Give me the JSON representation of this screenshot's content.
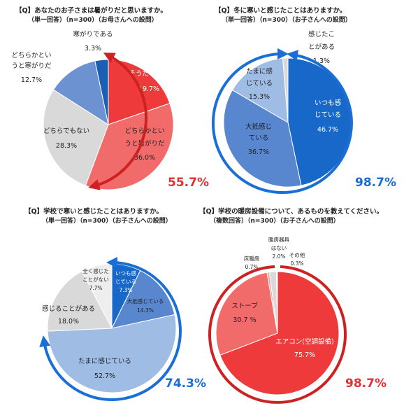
{
  "chart_data": [
    {
      "type": "pie",
      "title": "【Q】あなたのお子さまは暑がりだと思いますか。",
      "subtitle": "（単一回答）（n=300）（お母さんへの設問）",
      "slices": [
        {
          "label": "そうだと思う",
          "value": 19.7,
          "value_label": "19.7%",
          "color": "#ee3a3a"
        },
        {
          "label": "どちらかというと暑がりだ",
          "value": 36.0,
          "value_label": "36.0%",
          "color": "#f26b6b"
        },
        {
          "label": "どちらでもない",
          "value": 28.3,
          "value_label": "28.3%",
          "color": "#d9d9d9"
        },
        {
          "label": "どちらかというと寒がりだ",
          "value": 12.7,
          "value_label": "12.7%",
          "color": "#6d92d2"
        },
        {
          "label": "寒がりである",
          "value": 3.3,
          "value_label": "3.3%",
          "color": "#1a5fb4"
        }
      ],
      "total_label": "55.7%",
      "total_color": "#e03030"
    },
    {
      "type": "pie",
      "title": "【Q】冬に寒いと感じたことはありますか。",
      "subtitle": "（単一回答）（n=300）（お子さんへの設問）",
      "slices": [
        {
          "label": "いつも感じている",
          "value": 46.7,
          "value_label": "46.7%",
          "color": "#1768c8"
        },
        {
          "label": "大抵感じている",
          "value": 36.7,
          "value_label": "36.7%",
          "color": "#5887d0"
        },
        {
          "label": "たまに感じている",
          "value": 15.3,
          "value_label": "15.3%",
          "color": "#9fbce4"
        },
        {
          "label": "感じたことがある",
          "value": 1.3,
          "value_label": "1.3%",
          "color": "#d9d9d9"
        }
      ],
      "total_label": "98.7%",
      "total_color": "#1a6fd6"
    },
    {
      "type": "pie",
      "title": "【Q】学校で寒いと感じたことはありますか。",
      "subtitle": "（単一回答）（n=300）（お子さんへの設問）",
      "slices": [
        {
          "label": "いつも感じている",
          "value": 7.3,
          "value_label": "7.3%",
          "color": "#1768c8"
        },
        {
          "label": "大抵感じている",
          "value": 14.3,
          "value_label": "14.3%",
          "color": "#5887d0"
        },
        {
          "label": "たまに感じている",
          "value": 52.7,
          "value_label": "52.7%",
          "color": "#9fbce4"
        },
        {
          "label": "感じることがある",
          "value": 18.0,
          "value_label": "18.0%",
          "color": "#d9d9d9"
        },
        {
          "label": "全く感じたことがない",
          "value": 7.7,
          "value_label": "7.7%",
          "color": "#eeeeee"
        }
      ],
      "total_label": "74.3%",
      "total_color": "#1a6fd6"
    },
    {
      "type": "pie",
      "title": "【Q】学校の暖房設備について、あるものを教えてください。",
      "subtitle": "（複数回答）（n=300）（お子さんへの設問）",
      "slices": [
        {
          "label": "エアコン(空調設備)",
          "value": 75.7,
          "value_label": "75.7%",
          "color": "#ee3a3a"
        },
        {
          "label": "ストーブ",
          "value": 30.7,
          "value_label": "30.7 %",
          "color": "#f26b6b"
        },
        {
          "label": "床暖房",
          "value": 0.7,
          "value_label": "0.7%",
          "color": "#f4a3a3"
        },
        {
          "label": "暖房器具はない",
          "value": 2.0,
          "value_label": "2.0%",
          "color": "#d9d9d9"
        },
        {
          "label": "その他",
          "value": 0.3,
          "value_label": "0.3%",
          "color": "#ffffff"
        }
      ],
      "total_label": "98.7%",
      "total_color": "#e03030"
    }
  ]
}
